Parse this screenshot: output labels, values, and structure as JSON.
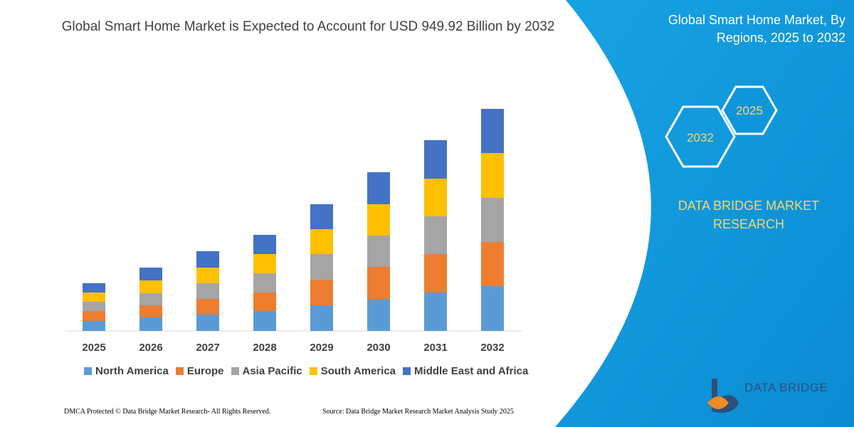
{
  "chart_data": {
    "type": "bar",
    "stacked": true,
    "title": "Global Smart Home Market is Expected to Account for USD 949.92 Billion by 2032",
    "categories": [
      "2025",
      "2026",
      "2027",
      "2028",
      "2029",
      "2030",
      "2031",
      "2032"
    ],
    "series": [
      {
        "name": "North America",
        "color": "#5b9bd5",
        "values": [
          14,
          19,
          23,
          28,
          36,
          45,
          54,
          63
        ]
      },
      {
        "name": "Europe",
        "color": "#ed7d31",
        "values": [
          14,
          17,
          22,
          26,
          36,
          45,
          54,
          62
        ]
      },
      {
        "name": "Asia Pacific",
        "color": "#a5a5a5",
        "values": [
          13,
          17,
          22,
          27,
          36,
          44,
          53,
          62
        ]
      },
      {
        "name": "South America",
        "color": "#ffc000",
        "values": [
          13,
          18,
          22,
          27,
          35,
          44,
          53,
          63
        ]
      },
      {
        "name": "Middle East and Africa",
        "color": "#4472c4",
        "values": [
          13,
          18,
          23,
          27,
          35,
          45,
          54,
          62
        ]
      }
    ],
    "ylim": [
      0,
      312
    ]
  },
  "panel": {
    "title": "Global Smart Home Market, By Regions, 2025 to 2032",
    "hex_labels": [
      "2025",
      "2032"
    ],
    "brand": "DATA BRIDGE MARKET RESEARCH"
  },
  "footer": {
    "left": "DMCA Protected © Data Bridge Market Research-  All Rights Reserved.",
    "right": "Source: Data Bridge Market Research  Market Analysis Study 2025"
  },
  "logo": {
    "name": "DATA BRIDGE"
  }
}
